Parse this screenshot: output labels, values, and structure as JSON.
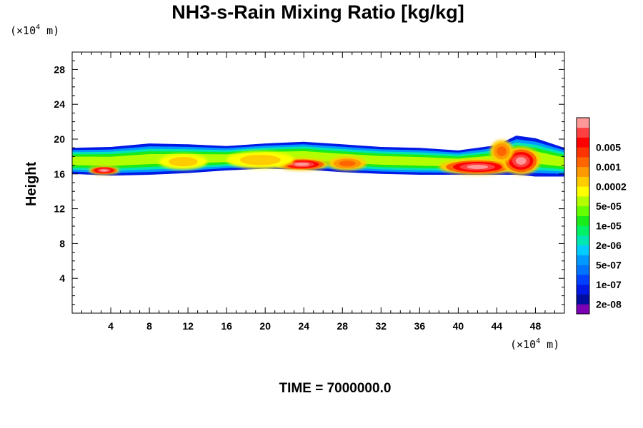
{
  "chart_data": {
    "type": "heatmap",
    "title": "NH3-s-Rain Mixing Ratio [kg/kg]",
    "ylabel": "Height",
    "x_unit": {
      "prefix": "(×10",
      "exp": "4",
      "suffix": " m)"
    },
    "y_unit": {
      "prefix": "(×10",
      "exp": "4",
      "suffix": " m)"
    },
    "xlim": [
      0,
      51
    ],
    "ylim": [
      0,
      30
    ],
    "xticks": [
      4,
      8,
      12,
      16,
      20,
      24,
      28,
      32,
      36,
      40,
      44,
      48
    ],
    "yticks": [
      4,
      8,
      12,
      16,
      20,
      24,
      28
    ],
    "legend_placement": "right",
    "colorbar": {
      "colors": [
        "#7b00b3",
        "#000d9e",
        "#0019e6",
        "#0040ff",
        "#0073ff",
        "#0099ff",
        "#00ccff",
        "#00e6b3",
        "#00f066",
        "#1aeb1a",
        "#66ff00",
        "#b3ff00",
        "#ffff00",
        "#ffcc00",
        "#ff9900",
        "#ff6600",
        "#ff3300",
        "#ff0000",
        "#ff4040",
        "#ff9999"
      ],
      "labels": [
        "2e-08",
        "1e-07",
        "5e-07",
        "2e-06",
        "1e-05",
        "5e-05",
        "0.0002",
        "0.001",
        "0.005"
      ]
    },
    "band": {
      "ybottom": [
        16.0,
        15.8,
        15.9,
        16.1,
        16.4,
        16.6,
        16.5,
        16.2,
        16.0,
        15.9,
        15.9,
        15.9,
        15.9,
        15.7,
        15.7
      ],
      "ytop": [
        19.0,
        19.1,
        19.5,
        19.4,
        19.2,
        19.5,
        19.7,
        19.4,
        19.1,
        19.0,
        18.7,
        19.3,
        20.4,
        20.1,
        19.0
      ],
      "xnodes": [
        0,
        4,
        8,
        12,
        16,
        20,
        24,
        28,
        32,
        36,
        40,
        44,
        46,
        48,
        51
      ],
      "hotspots": [
        {
          "x": 3.3,
          "y": 16.4,
          "rx": 1.6,
          "ry": 0.5,
          "level": "red"
        },
        {
          "x": 23.8,
          "y": 17.1,
          "rx": 2.8,
          "ry": 0.7,
          "level": "red"
        },
        {
          "x": 28.5,
          "y": 17.2,
          "rx": 2.0,
          "ry": 0.8,
          "level": "orange"
        },
        {
          "x": 11.5,
          "y": 17.4,
          "rx": 2.5,
          "ry": 0.9,
          "level": "yellow"
        },
        {
          "x": 19.5,
          "y": 17.6,
          "rx": 3.5,
          "ry": 1.0,
          "level": "yellow"
        },
        {
          "x": 42.0,
          "y": 16.8,
          "rx": 4.0,
          "ry": 0.9,
          "level": "red"
        },
        {
          "x": 46.5,
          "y": 17.5,
          "rx": 2.0,
          "ry": 1.6,
          "level": "red"
        },
        {
          "x": 44.5,
          "y": 18.6,
          "rx": 1.2,
          "ry": 1.3,
          "level": "orange"
        }
      ]
    },
    "footer": "TIME = 7000000.0"
  }
}
